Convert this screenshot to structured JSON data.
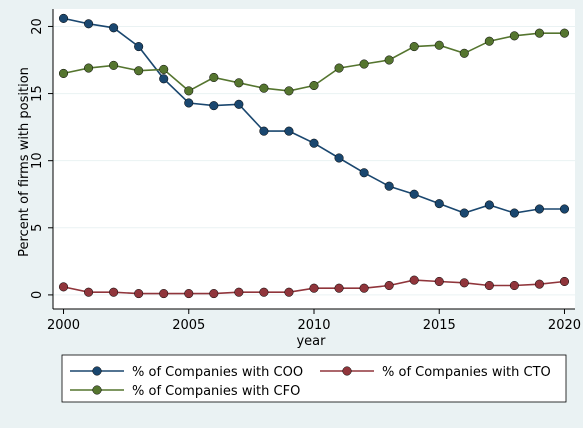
{
  "chart_data": {
    "type": "line",
    "title": "",
    "xlabel": "year",
    "ylabel": "Percent of firms with position",
    "xlim": [
      2000,
      2020
    ],
    "ylim": [
      0,
      21
    ],
    "xticks": [
      2000,
      2005,
      2010,
      2015,
      2020
    ],
    "yticks": [
      0,
      5,
      10,
      15,
      20
    ],
    "grid": "horizontal",
    "legend_position": "bottom",
    "x": [
      2000,
      2001,
      2002,
      2003,
      2004,
      2005,
      2006,
      2007,
      2008,
      2009,
      2010,
      2011,
      2012,
      2013,
      2014,
      2015,
      2016,
      2017,
      2018,
      2019,
      2020
    ],
    "series": [
      {
        "name": "% of Companies with COO",
        "color": "#1a476f",
        "values": [
          20.6,
          20.2,
          19.9,
          18.5,
          16.1,
          14.3,
          14.1,
          14.2,
          12.2,
          12.2,
          11.3,
          10.2,
          9.1,
          8.1,
          7.5,
          6.8,
          6.1,
          6.7,
          6.1,
          6.4,
          6.4
        ]
      },
      {
        "name": "% of Companies with CTO",
        "color": "#90353b",
        "values": [
          0.6,
          0.2,
          0.2,
          0.1,
          0.1,
          0.1,
          0.1,
          0.2,
          0.2,
          0.2,
          0.5,
          0.5,
          0.5,
          0.7,
          1.1,
          1.0,
          0.9,
          0.7,
          0.7,
          0.8,
          1.0
        ]
      },
      {
        "name": "% of Companies with CFO",
        "color": "#55752f",
        "values": [
          16.5,
          16.9,
          17.1,
          16.7,
          16.8,
          15.2,
          16.2,
          15.8,
          15.4,
          15.2,
          15.6,
          16.9,
          17.2,
          17.5,
          18.5,
          18.6,
          18.0,
          18.9,
          19.3,
          19.5,
          19.5
        ]
      }
    ]
  }
}
